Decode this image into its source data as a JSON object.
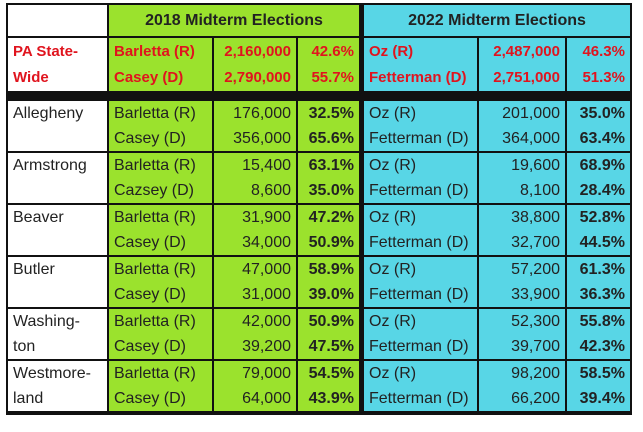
{
  "header": {
    "col2018": "2018 Midterm Elections",
    "col2022": "2022 Midterm Elections"
  },
  "statewide": {
    "label": [
      "PA State-",
      "Wide"
    ],
    "e2018": [
      {
        "name": "Barletta (R)",
        "votes": "2,160,000",
        "pct": "42.6%"
      },
      {
        "name": "Casey  (D)",
        "votes": "2,790,000",
        "pct": "55.7%"
      }
    ],
    "e2022": [
      {
        "name": "Oz (R)",
        "votes": "2,487,000",
        "pct": "46.3%"
      },
      {
        "name": "Fetterman (D)",
        "votes": "2,751,000",
        "pct": "51.3%"
      }
    ]
  },
  "counties": [
    {
      "label": [
        "Allegheny"
      ],
      "e2018": [
        {
          "name": "Barletta (R)",
          "votes": "176,000",
          "pct": "32.5%"
        },
        {
          "name": "Casey (D)",
          "votes": "356,000",
          "pct": "65.6%"
        }
      ],
      "e2022": [
        {
          "name": "Oz (R)",
          "votes": "201,000",
          "pct": "35.0%"
        },
        {
          "name": "Fetterman (D)",
          "votes": "364,000",
          "pct": "63.4%"
        }
      ]
    },
    {
      "label": [
        "Armstrong"
      ],
      "e2018": [
        {
          "name": "Barletta (R)",
          "votes": "15,400",
          "pct": "63.1%"
        },
        {
          "name": "Cazsey (D)",
          "votes": "8,600",
          "pct": "35.0%"
        }
      ],
      "e2022": [
        {
          "name": "Oz (R)",
          "votes": "19,600",
          "pct": "68.9%"
        },
        {
          "name": "Fetterman (D)",
          "votes": "8,100",
          "pct": "28.4%"
        }
      ]
    },
    {
      "label": [
        "Beaver"
      ],
      "e2018": [
        {
          "name": "Barletta (R)",
          "votes": "31,900",
          "pct": "47.2%"
        },
        {
          "name": "Casey (D)",
          "votes": "34,000",
          "pct": "50.9%"
        }
      ],
      "e2022": [
        {
          "name": "Oz (R)",
          "votes": "38,800",
          "pct": "52.8%"
        },
        {
          "name": "Fetterman (D)",
          "votes": "32,700",
          "pct": "44.5%"
        }
      ]
    },
    {
      "label": [
        "Butler"
      ],
      "e2018": [
        {
          "name": "Barletta (R)",
          "votes": "47,000",
          "pct": "58.9%"
        },
        {
          "name": "Casey (D)",
          "votes": "31,000",
          "pct": "39.0%"
        }
      ],
      "e2022": [
        {
          "name": "Oz (R)",
          "votes": "57,200",
          "pct": "61.3%"
        },
        {
          "name": "Fetterman (D)",
          "votes": "33,900",
          "pct": "36.3%"
        }
      ]
    },
    {
      "label": [
        "Washing-",
        "ton"
      ],
      "e2018": [
        {
          "name": "Barletta (R)",
          "votes": "42,000",
          "pct": "50.9%"
        },
        {
          "name": "Casey (D)",
          "votes": "39,200",
          "pct": "47.5%"
        }
      ],
      "e2022": [
        {
          "name": "Oz (R)",
          "votes": "52,300",
          "pct": "55.8%"
        },
        {
          "name": "Fetterman (D)",
          "votes": "39,700",
          "pct": "42.3%"
        }
      ]
    },
    {
      "label": [
        "Westmore-",
        "land"
      ],
      "e2018": [
        {
          "name": "Barletta (R)",
          "votes": "79,000",
          "pct": "54.5%"
        },
        {
          "name": "Casey (D)",
          "votes": "64,000",
          "pct": "43.9%"
        }
      ],
      "e2022": [
        {
          "name": "Oz (R)",
          "votes": "98,200",
          "pct": "58.5%"
        },
        {
          "name": "Fetterman (D)",
          "votes": "66,200",
          "pct": "39.4%"
        }
      ]
    }
  ]
}
